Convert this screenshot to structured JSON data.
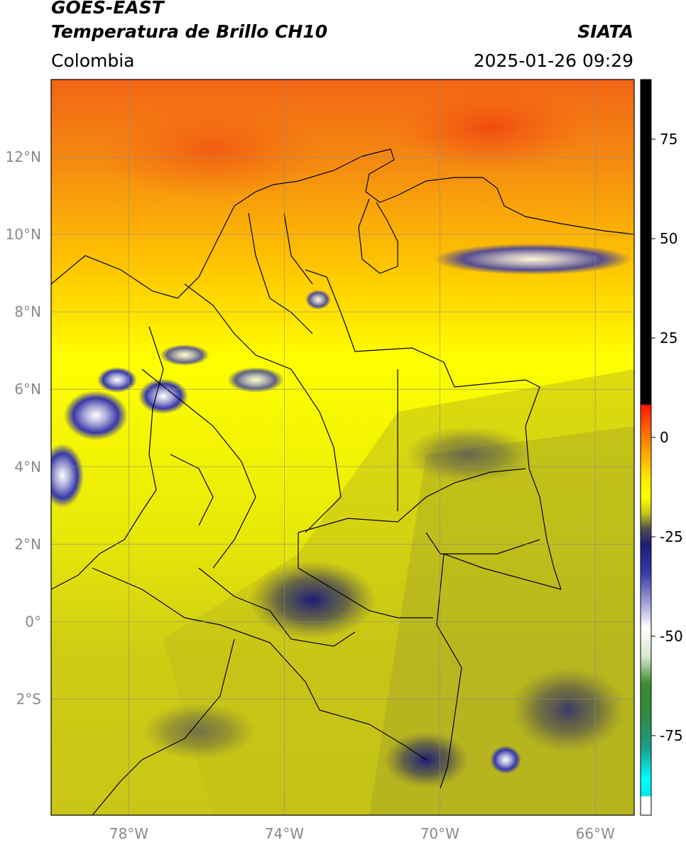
{
  "header": {
    "satellite": "GOES-EAST",
    "product": "Temperatura de Brillo CH10",
    "organization": "SIATA",
    "region": "Colombia",
    "timestamp": "2025-01-26 09:29"
  },
  "map": {
    "lon_range": [
      -80,
      -65
    ],
    "lat_range": [
      -5,
      14
    ],
    "lat_ticks": [
      {
        "value": 12,
        "label": "12°N"
      },
      {
        "value": 10,
        "label": "10°N"
      },
      {
        "value": 8,
        "label": "8°N"
      },
      {
        "value": 6,
        "label": "6°N"
      },
      {
        "value": 4,
        "label": "4°N"
      },
      {
        "value": 2,
        "label": "2°N"
      },
      {
        "value": 0,
        "label": "0°"
      },
      {
        "value": -2,
        "label": "2°S"
      }
    ],
    "lon_ticks": [
      {
        "value": -78,
        "label": "78°W"
      },
      {
        "value": -74,
        "label": "74°W"
      },
      {
        "value": -70,
        "label": "70°W"
      },
      {
        "value": -66,
        "label": "66°W"
      }
    ],
    "grid": true,
    "background_colors": {
      "north": "#f26515",
      "center": "#ffff00",
      "south": "#c9c617"
    }
  },
  "colorbar": {
    "range": [
      -95,
      90
    ],
    "ticks": [
      75,
      50,
      25,
      0,
      -25,
      -50,
      -75
    ],
    "stops": [
      {
        "value": 90,
        "color": "#000000"
      },
      {
        "value": 8.5,
        "color": "#000000"
      },
      {
        "value": 8,
        "color": "#ff1a00"
      },
      {
        "value": 0,
        "color": "#ff7a00"
      },
      {
        "value": -10,
        "color": "#ffe600"
      },
      {
        "value": -15,
        "color": "#ffff00"
      },
      {
        "value": -19,
        "color": "#c8c815"
      },
      {
        "value": -23,
        "color": "#505050"
      },
      {
        "value": -27,
        "color": "#1c1c7a"
      },
      {
        "value": -34,
        "color": "#3838a8"
      },
      {
        "value": -42,
        "color": "#a8a8d8"
      },
      {
        "value": -48,
        "color": "#ffffff"
      },
      {
        "value": -55,
        "color": "#d8e8d0"
      },
      {
        "value": -62,
        "color": "#3c8c2c"
      },
      {
        "value": -70,
        "color": "#2c8c40"
      },
      {
        "value": -78,
        "color": "#1aa08c"
      },
      {
        "value": -86,
        "color": "#00ffff"
      },
      {
        "value": -90,
        "color": "#00e8e8"
      },
      {
        "value": -90.5,
        "color": "#ffffff"
      },
      {
        "value": -95,
        "color": "#ffffff"
      }
    ]
  }
}
